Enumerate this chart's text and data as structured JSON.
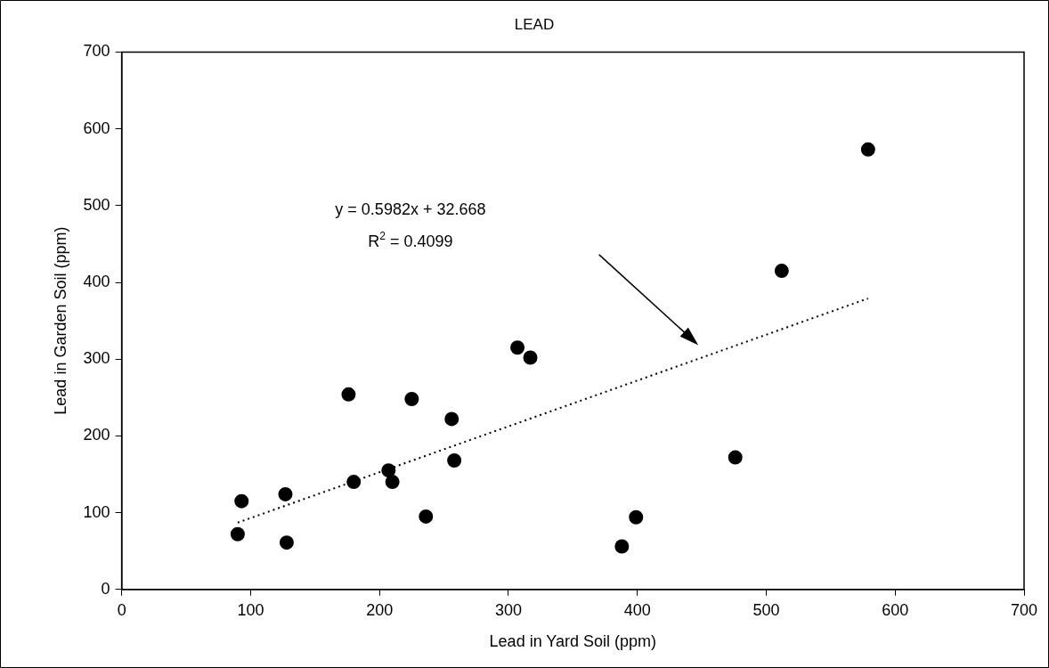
{
  "chart_data": {
    "type": "scatter",
    "title": "LEAD",
    "xlabel": "Lead in Yard Soil (ppm)",
    "ylabel": "Lead in Garden Soil (ppm)",
    "xlim": [
      0,
      700
    ],
    "xticks": [
      0,
      100,
      200,
      300,
      400,
      500,
      600,
      700
    ],
    "ylim": [
      0,
      700
    ],
    "yticks": [
      0,
      100,
      200,
      300,
      400,
      500,
      600,
      700
    ],
    "grid": false,
    "legend": false,
    "marker": "circle",
    "annotations": [
      "y = 0.5982x + 32.668",
      "R$^{2}$ = 0.4099"
    ],
    "series": [
      {
        "color": "#000000",
        "x": [
          90,
          93,
          127,
          128,
          176,
          180,
          207,
          210,
          225,
          236,
          256,
          258,
          307,
          317,
          388,
          399,
          476,
          512,
          579
        ],
        "values": [
          72,
          115,
          124,
          61,
          254,
          140,
          155,
          140,
          248,
          95,
          222,
          168,
          315,
          302,
          56,
          94,
          172,
          415,
          573
        ]
      },
      {
        "type": "line",
        "color": "#000000",
        "x": [
          90,
          579
        ],
        "values": [
          87,
          379
        ],
        "line_style": "dotted",
        "marker": "none"
      }
    ]
  }
}
